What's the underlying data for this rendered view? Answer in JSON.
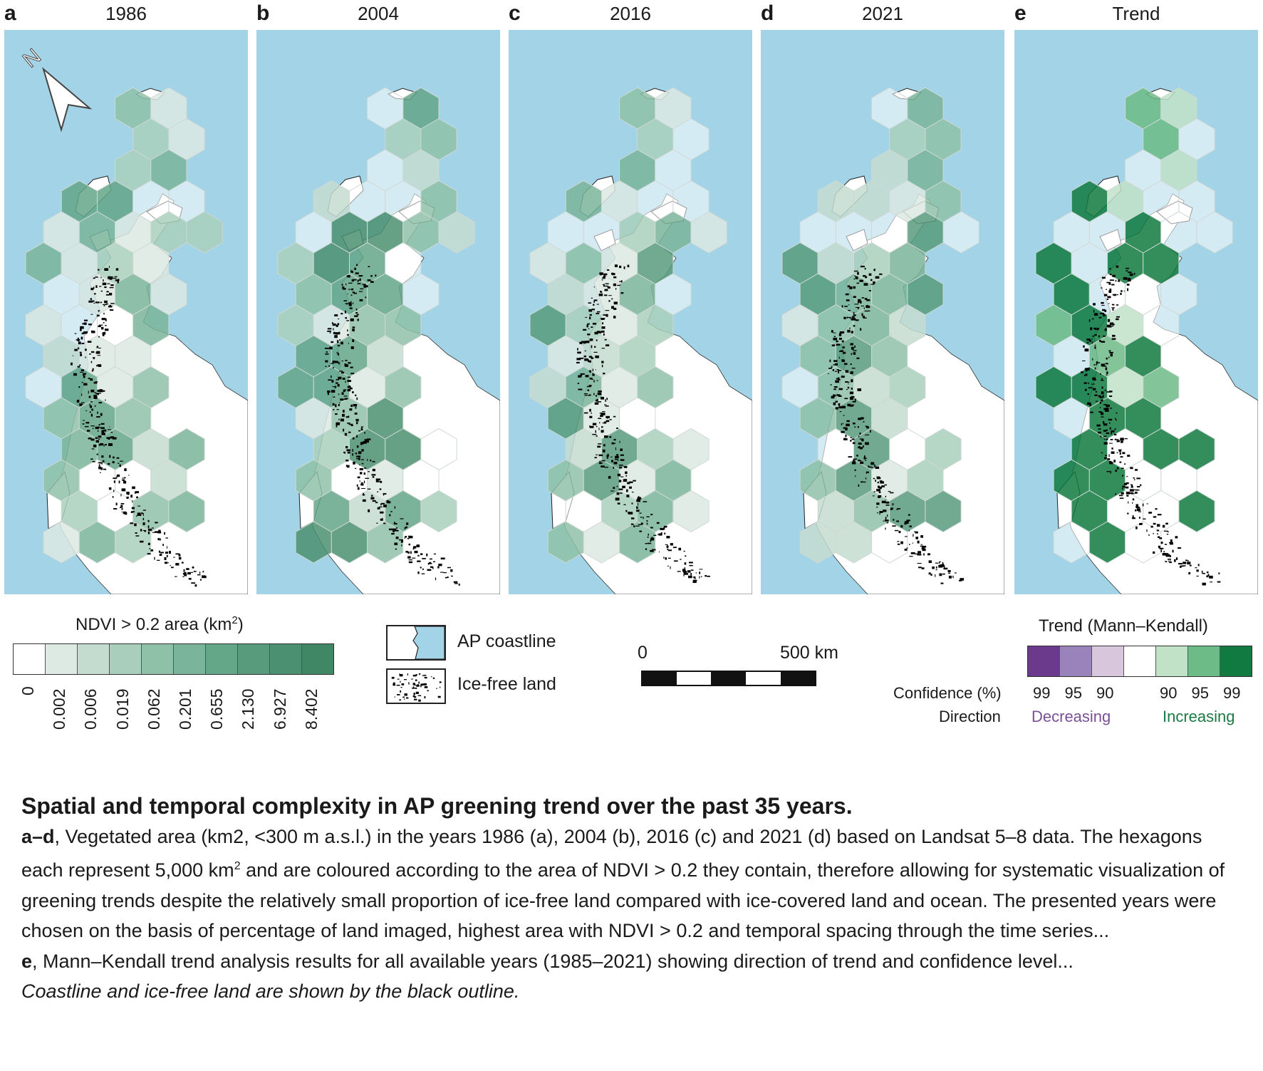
{
  "panels": [
    {
      "letter": "a",
      "title": "1986"
    },
    {
      "letter": "b",
      "title": "2004"
    },
    {
      "letter": "c",
      "title": "2016"
    },
    {
      "letter": "d",
      "title": "2021"
    },
    {
      "letter": "e",
      "title": "Trend"
    }
  ],
  "map_layers": {
    "ocean_color": "#a3d3e7",
    "land_color": "#ffffff",
    "ice_free_color": "#000000",
    "north_arrow_label": "N"
  },
  "ndvi_legend": {
    "title": "NDVI > 0.2 area (km",
    "title_sup": "2",
    "title_end": ")",
    "bins": [
      {
        "label": "0",
        "color": "#ffffff"
      },
      {
        "label": "0.002",
        "color": "#dde9e3"
      },
      {
        "label": "0.006",
        "color": "#c4dcd0"
      },
      {
        "label": "0.019",
        "color": "#a9cfbc"
      },
      {
        "label": "0.062",
        "color": "#8fc1a8"
      },
      {
        "label": "0.201",
        "color": "#7ab49a"
      },
      {
        "label": "0.655",
        "color": "#64a688"
      },
      {
        "label": "2.130",
        "color": "#589b7c"
      },
      {
        "label": "6.927",
        "color": "#4b9070"
      },
      {
        "label": "8.402",
        "color": ""
      }
    ]
  },
  "symbol_legend": {
    "coastline_label": "AP coastline",
    "icefree_label": "Ice-free land"
  },
  "scale_bar": {
    "start_label": "0",
    "end_label": "500 km"
  },
  "trend_legend": {
    "title": "Trend (Mann–Kendall)",
    "confidence_label": "Confidence (%)",
    "direction_label": "Direction",
    "classes": [
      {
        "confidence": "99",
        "color": "#6c3a8c"
      },
      {
        "confidence": "95",
        "color": "#9a83bb"
      },
      {
        "confidence": "90",
        "color": "#d8c6dc"
      },
      {
        "confidence": "",
        "color": "#ffffff"
      },
      {
        "confidence": "90",
        "color": "#c2e2c8"
      },
      {
        "confidence": "95",
        "color": "#6dbb86"
      },
      {
        "confidence": "99",
        "color": "#117a40"
      }
    ],
    "decreasing_label": "Decreasing",
    "decreasing_color": "#7b5097",
    "increasing_label": "Increasing",
    "increasing_color": "#1c7a44"
  },
  "caption": {
    "title": "Spatial and temporal complexity in AP greening trend over the past 35 years.",
    "p1_bold": "a–d",
    "p1_text_a": ", Vegetated area (km2, <300 m a.s.l.) in the years 1986 (a), 2004 (b), 2016 (c) and 2021 (d) based on Landsat 5–8 data. The hexagons each represent 5,000 km",
    "p1_sup": "2",
    "p1_text_b": " and are coloured according to the area of NDVI > 0.2 they contain, therefore allowing for systematic visualization of greening trends despite the relatively small proportion of ice-free land compared with ice-covered land and ocean. The presented years were chosen on the basis of percentage of land imaged, highest area with NDVI > 0.2 and temporal spacing through the time series...",
    "p2_bold": "e",
    "p2_text": ", Mann–Kendall trend analysis results for all available years (1985–2021) showing direction of trend and confidence level...",
    "p3_italic": "Coastline and ice-free land are shown by the black outline."
  }
}
